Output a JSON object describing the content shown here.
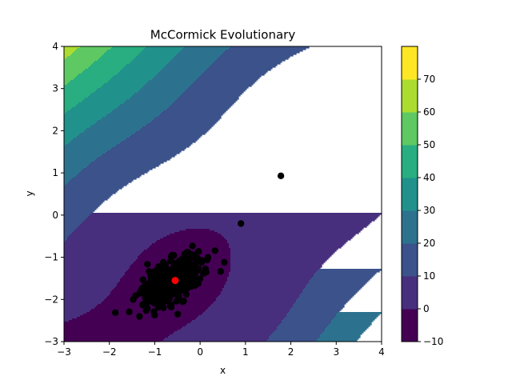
{
  "chart_data": {
    "type": "contour",
    "title": "McCormick Evolutionary",
    "xlabel": "x",
    "ylabel": "y",
    "xlim": [
      -3,
      4
    ],
    "ylim": [
      -3,
      4
    ],
    "grid": false,
    "function": "sin(x+y) + (x-y)^2 - 1.5x + 2.5y + 1",
    "x_ticks": [
      "−3",
      "−2",
      "−1",
      "0",
      "1",
      "2",
      "3",
      "4"
    ],
    "y_ticks": [
      "−3",
      "−2",
      "−1",
      "0",
      "1",
      "2",
      "3",
      "4"
    ],
    "contour_levels": [
      -10,
      0,
      10,
      20,
      30,
      40,
      50,
      60,
      70
    ],
    "colorbar_ticks": [
      "−10",
      "0",
      "10",
      "20",
      "30",
      "40",
      "50",
      "60",
      "70"
    ],
    "colormap": [
      "#440154",
      "#472f7d",
      "#3b528b",
      "#2c728e",
      "#21918c",
      "#28ae80",
      "#5ec962",
      "#addc30",
      "#fde725"
    ],
    "population_color": "#000000",
    "best_color": "#ff0000",
    "best_point": {
      "x": -0.55,
      "y": -1.55
    },
    "outliers": [
      {
        "x": 1.78,
        "y": 0.93
      },
      {
        "x": 0.9,
        "y": -0.2
      }
    ],
    "population_cluster": {
      "count": 420,
      "center": [
        -0.6,
        -1.55
      ],
      "spread_major": 0.42,
      "spread_minor": 0.2,
      "orientation_deg": 40
    }
  }
}
